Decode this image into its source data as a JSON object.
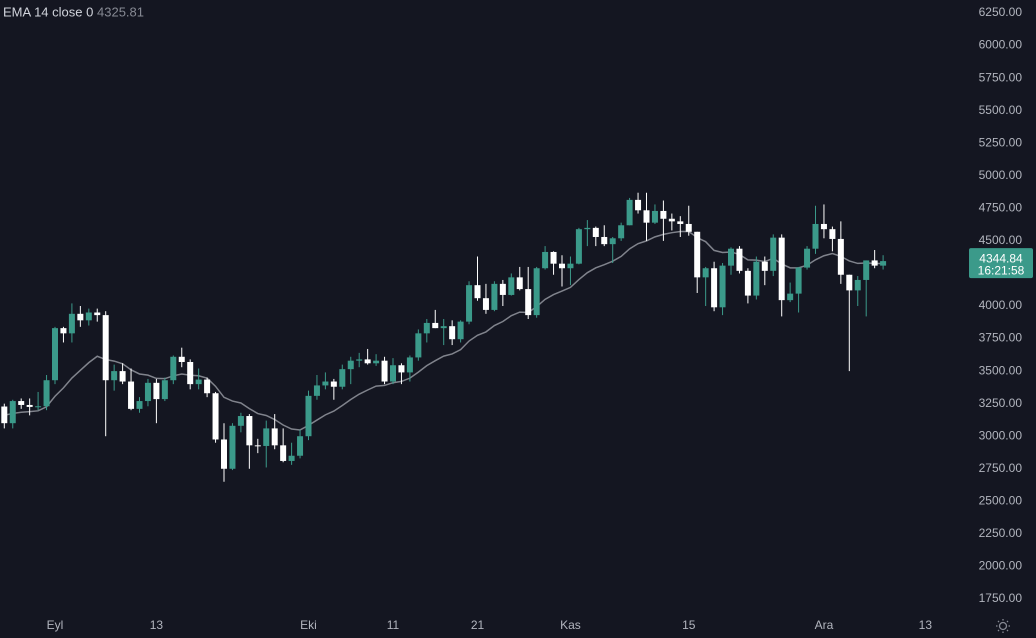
{
  "chart_data": {
    "type": "candlestick",
    "categories": [
      null,
      null,
      null,
      null,
      null,
      null,
      "Eyl",
      null,
      null,
      null,
      null,
      null,
      null,
      null,
      null,
      null,
      null,
      null,
      "13",
      null,
      null,
      null,
      null,
      null,
      null,
      null,
      null,
      null,
      null,
      null,
      null,
      null,
      null,
      null,
      null,
      null,
      "Eki",
      null,
      null,
      null,
      null,
      null,
      null,
      null,
      null,
      null,
      "11",
      null,
      null,
      null,
      null,
      null,
      null,
      null,
      null,
      null,
      "21",
      null,
      null,
      null,
      null,
      null,
      null,
      null,
      null,
      null,
      null,
      "Kas",
      null,
      null,
      null,
      null,
      null,
      null,
      null,
      null,
      null,
      null,
      null,
      null,
      null,
      "15",
      null,
      null,
      null,
      null,
      null,
      null,
      null,
      null,
      null,
      null,
      null,
      null,
      null,
      null,
      null,
      "Ara",
      null,
      null,
      null,
      null,
      null,
      null,
      null,
      null,
      null,
      null,
      null,
      "13"
    ],
    "open": [
      3228,
      3100,
      3270,
      3240,
      3225,
      3230,
      3430,
      3830,
      3790,
      3940,
      3890,
      3950,
      3930,
      3430,
      3500,
      3420,
      3210,
      3270,
      3410,
      3285,
      3430,
      3610,
      3570,
      3400,
      3435,
      3330,
      2975,
      2750,
      3080,
      3155,
      2930,
      2925,
      3060,
      2930,
      2810,
      2850,
      3000,
      3310,
      3390,
      3420,
      3380,
      3515,
      3580,
      3590,
      3560,
      3580,
      3420,
      3545,
      3490,
      3605,
      3790,
      3870,
      3830,
      3845,
      3745,
      3880,
      4160,
      4060,
      3970,
      4170,
      4085,
      4220,
      4130,
      3930,
      4290,
      4415,
      4325,
      4290,
      4325,
      4590,
      4600,
      4530,
      4475,
      4520,
      4620,
      4815,
      4735,
      4640,
      4730,
      4670,
      4650,
      4630,
      4570,
      4220,
      4290,
      3990,
      4310,
      4440,
      4270,
      4080,
      4340,
      4270,
      4525,
      4045,
      4095,
      4295,
      4440,
      4630,
      4590,
      4515,
      4240,
      4120,
      4200,
      4350,
      4310,
      null,
      null,
      null,
      null,
      null
    ],
    "high": [
      3250,
      3280,
      3290,
      3290,
      3340,
      3470,
      3840,
      3840,
      4020,
      4000,
      3980,
      3980,
      3960,
      3550,
      3560,
      3520,
      3300,
      3440,
      3440,
      3450,
      3620,
      3680,
      3590,
      3520,
      3450,
      3340,
      3100,
      3100,
      3180,
      3170,
      2980,
      3120,
      3170,
      3060,
      2950,
      3050,
      3350,
      3470,
      3490,
      3440,
      3550,
      3610,
      3640,
      3670,
      3630,
      3610,
      3600,
      3560,
      3620,
      3820,
      3900,
      3970,
      3900,
      3890,
      3890,
      4190,
      4380,
      4170,
      4190,
      4200,
      4250,
      4300,
      4300,
      4300,
      4460,
      4420,
      4390,
      4380,
      4600,
      4660,
      4610,
      4620,
      4530,
      4640,
      4830,
      4870,
      4870,
      4780,
      4810,
      4710,
      4690,
      4770,
      4570,
      4300,
      4340,
      4330,
      4450,
      4460,
      4290,
      4380,
      4380,
      4550,
      4550,
      4180,
      4300,
      4460,
      4770,
      4780,
      4610,
      4650,
      4240,
      4230,
      4350,
      4430,
      4390,
      null,
      null,
      null,
      null,
      null
    ],
    "low": [
      3060,
      3060,
      3210,
      3160,
      3200,
      3200,
      3400,
      3720,
      3720,
      3840,
      3850,
      3880,
      3000,
      3350,
      3400,
      3200,
      3180,
      3230,
      3100,
      3270,
      3400,
      3530,
      3360,
      3360,
      3300,
      2950,
      2650,
      2740,
      3030,
      2750,
      2870,
      2760,
      2900,
      2800,
      2780,
      2830,
      2970,
      3280,
      3360,
      3280,
      3360,
      3400,
      3530,
      3550,
      3540,
      3400,
      3400,
      3400,
      3420,
      3580,
      3720,
      3830,
      3700,
      3700,
      3720,
      3860,
      4040,
      3940,
      3960,
      4000,
      4080,
      4120,
      3900,
      3910,
      4280,
      4240,
      4150,
      4160,
      4320,
      4460,
      4460,
      4460,
      4330,
      4500,
      4620,
      4710,
      4500,
      4630,
      4500,
      4580,
      4530,
      4540,
      4100,
      4000,
      3960,
      3930,
      4240,
      4250,
      4020,
      4050,
      4160,
      4230,
      3920,
      4030,
      3950,
      4280,
      4400,
      4520,
      4420,
      4170,
      3500,
      4000,
      3920,
      4290,
      4280,
      null,
      null,
      null,
      null,
      null
    ],
    "close": [
      3100,
      3270,
      3240,
      3225,
      3230,
      3430,
      3830,
      3790,
      3940,
      3890,
      3950,
      3930,
      3430,
      3500,
      3420,
      3210,
      3270,
      3410,
      3285,
      3430,
      3610,
      3570,
      3400,
      3435,
      3330,
      2975,
      2750,
      3080,
      3155,
      2930,
      2925,
      3060,
      2930,
      2810,
      2850,
      3000,
      3310,
      3390,
      3420,
      3380,
      3515,
      3580,
      3590,
      3560,
      3580,
      3420,
      3545,
      3490,
      3605,
      3790,
      3870,
      3830,
      3845,
      3745,
      3880,
      4160,
      4060,
      3970,
      4170,
      4085,
      4220,
      4130,
      3930,
      4290,
      4415,
      4325,
      4290,
      4325,
      4590,
      4600,
      4530,
      4475,
      4520,
      4620,
      4815,
      4735,
      4640,
      4730,
      4670,
      4650,
      4630,
      4570,
      4220,
      4290,
      3990,
      4310,
      4440,
      4270,
      4080,
      4340,
      4270,
      4525,
      4045,
      4095,
      4295,
      4440,
      4630,
      4590,
      4515,
      4240,
      4120,
      4200,
      4350,
      4310,
      4344.84,
      null,
      null,
      null,
      null,
      null
    ],
    "up_color": "#3b9a8a",
    "down_color": "#ffffff",
    "ema": {
      "label": "EMA 14 close 0",
      "color": "#80838c",
      "values": [
        3161,
        3175,
        3184,
        3189,
        3195,
        3226,
        3307,
        3371,
        3447,
        3506,
        3565,
        3614,
        3589,
        3577,
        3556,
        3510,
        3478,
        3469,
        3444,
        3442,
        3464,
        3478,
        3468,
        3464,
        3446,
        3383,
        3299,
        3270,
        3255,
        3212,
        3174,
        3159,
        3128,
        3086,
        3055,
        3048,
        3083,
        3124,
        3164,
        3193,
        3236,
        3282,
        3323,
        3355,
        3385,
        3390,
        3411,
        3421,
        3446,
        3492,
        3542,
        3580,
        3615,
        3632,
        3665,
        3731,
        3775,
        3801,
        3850,
        3881,
        3926,
        3953,
        3950,
        3995,
        4051,
        4088,
        4115,
        4143,
        4203,
        4256,
        4293,
        4317,
        4344,
        4381,
        4439,
        4479,
        4500,
        4531,
        4550,
        4563,
        4572,
        4572,
        4525,
        4494,
        4427,
        4411,
        4415,
        4396,
        4354,
        4352,
        4341,
        4366,
        4323,
        4293,
        4293,
        4313,
        4355,
        4386,
        4403,
        4381,
        4346,
        4327,
        4330,
        4327,
        4325.81,
        null,
        null,
        null,
        null,
        null
      ]
    },
    "countdown": "16:21:58",
    "ylim": [
      1650,
      6350
    ],
    "yticks": [
      {
        "value": 1750,
        "label": "1750.00"
      },
      {
        "value": 2000,
        "label": "2000.00"
      },
      {
        "value": 2250,
        "label": "2250.00"
      },
      {
        "value": 2500,
        "label": "2500.00"
      },
      {
        "value": 2750,
        "label": "2750.00"
      },
      {
        "value": 3000,
        "label": "3000.00"
      },
      {
        "value": 3250,
        "label": "3250.00"
      },
      {
        "value": 3500,
        "label": "3500.00"
      },
      {
        "value": 3750,
        "label": "3750.00"
      },
      {
        "value": 4000,
        "label": "4000.00"
      },
      {
        "value": 4250,
        "label": "4250.00"
      },
      {
        "value": 4500,
        "label": "4500.00"
      },
      {
        "value": 4750,
        "label": "4750.00"
      },
      {
        "value": 5000,
        "label": "5000.00"
      },
      {
        "value": 5250,
        "label": "5250.00"
      },
      {
        "value": 5500,
        "label": "5500.00"
      },
      {
        "value": 5750,
        "label": "5750.00"
      },
      {
        "value": 6000,
        "label": "6000.00"
      },
      {
        "value": 6250,
        "label": "6250.00"
      }
    ],
    "grid": false
  }
}
